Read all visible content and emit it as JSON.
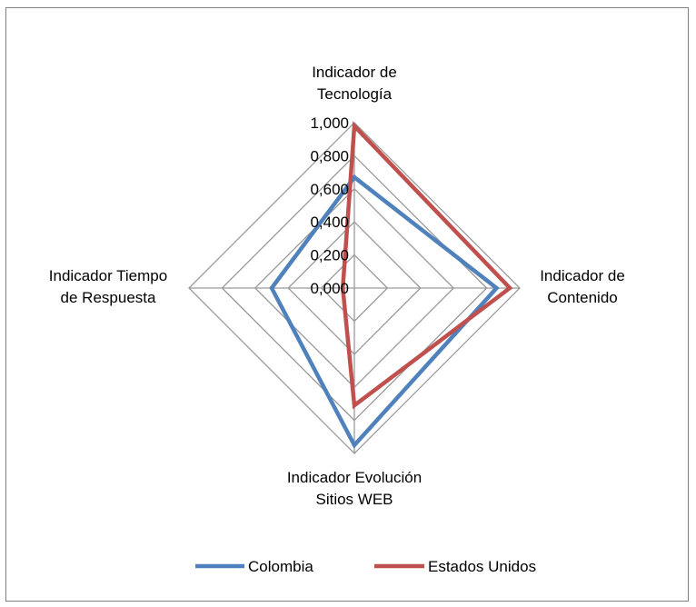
{
  "chart_data": {
    "type": "radar",
    "axes": [
      "Indicador de Tecnología",
      "Indicador de Contenido",
      "Indicador Evolución Sitios WEB",
      "Indicador Tiempo de Respuesta"
    ],
    "axis_label_lines": [
      [
        "Indicador de",
        "Tecnología"
      ],
      [
        "Indicador de",
        "Contenido"
      ],
      [
        "Indicador Evolución",
        "Sitios WEB"
      ],
      [
        "Indicador Tiempo",
        "de Respuesta"
      ]
    ],
    "ticks": [
      "0,000",
      "0,200",
      "0,400",
      "0,600",
      "0,800",
      "1,000"
    ],
    "tick_values": [
      0,
      0.2,
      0.4,
      0.6,
      0.8,
      1.0
    ],
    "rlim": [
      0,
      1
    ],
    "grid": true,
    "legend_position": "bottom",
    "series": [
      {
        "name": "Colombia",
        "values": [
          0.67,
          0.86,
          0.95,
          0.5
        ],
        "color": "#4F81BD"
      },
      {
        "name": "Estados Unidos",
        "values": [
          0.98,
          0.94,
          0.71,
          0.07
        ],
        "color": "#C0504D"
      }
    ]
  }
}
